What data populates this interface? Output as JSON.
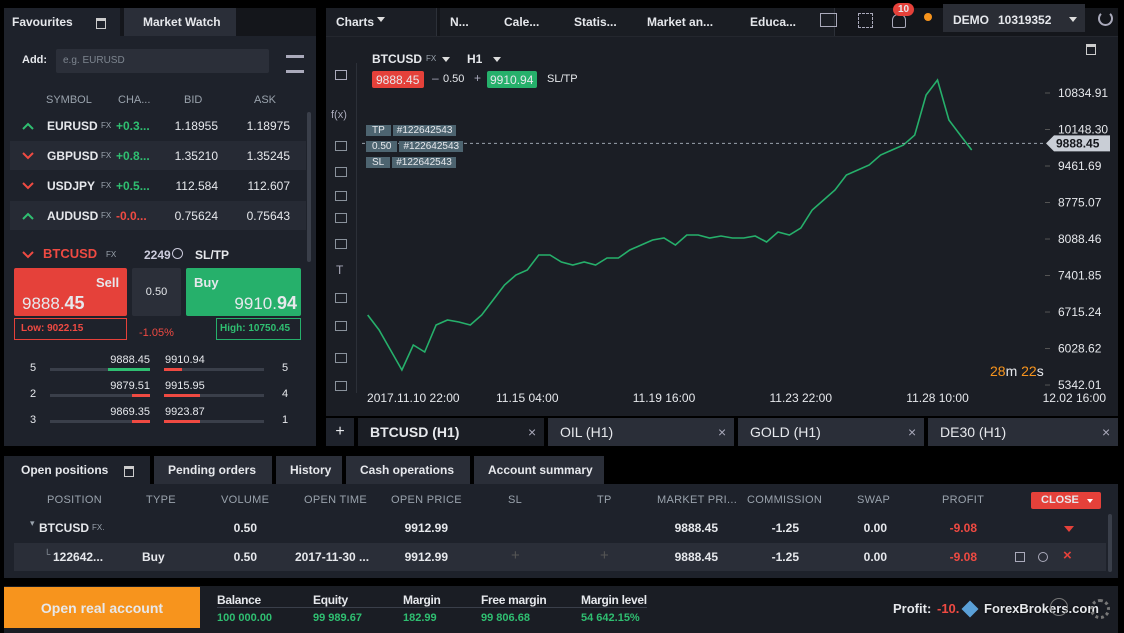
{
  "favourites": {
    "tabs": [
      "Favourites",
      "Market Watch"
    ],
    "add_label": "Add:",
    "add_placeholder": "e.g. EURUSD",
    "columns": [
      "SYMBOL",
      "CHA...",
      "BID",
      "ASK"
    ],
    "rows": [
      {
        "symbol": "EURUSD",
        "type": "FX",
        "change": "+0.3...",
        "bid": "1.18955",
        "ask": "1.18975",
        "direction": "up"
      },
      {
        "symbol": "GBPUSD",
        "type": "FX",
        "change": "+0.8...",
        "bid": "1.35210",
        "ask": "1.35245",
        "direction": "down"
      },
      {
        "symbol": "USDJPY",
        "type": "FX",
        "change": "+0.5...",
        "bid": "112.584",
        "ask": "112.607",
        "direction": "down"
      },
      {
        "symbol": "AUDUSD",
        "type": "FX",
        "change": "-0.0...",
        "bid": "0.75624",
        "ask": "0.75643",
        "direction": "up"
      }
    ]
  },
  "instrument": {
    "symbol": "BTCUSD",
    "type": "FX",
    "count": "2249",
    "sltp": "SL/TP",
    "sell_label": "Sell",
    "sell_main": "9888.",
    "sell_fraction": "45",
    "spread": "0.50",
    "buy_label": "Buy",
    "buy_main": "9910.",
    "buy_fraction": "94",
    "low": "Low: 9022.15",
    "change": "-1.05%",
    "high": "High: 10750.45",
    "depth": [
      {
        "level": "5",
        "bid": "9888.45",
        "ask": "9910.94",
        "volume": "5"
      },
      {
        "level": "2",
        "bid": "9879.51",
        "ask": "9915.95",
        "volume": "4"
      },
      {
        "level": "3",
        "bid": "9869.35",
        "ask": "9923.87",
        "volume": "1"
      }
    ]
  },
  "header": {
    "tabs": [
      "Charts",
      "N...",
      "Cale...",
      "Statis...",
      "Market an...",
      "Educa..."
    ],
    "notifications": "10",
    "account_type": "DEMO",
    "account_id": "10319352"
  },
  "chart_window": {
    "symbol": "BTCUSD",
    "symbol_type": "FX",
    "timeframe": "H1",
    "sell": "9888.45",
    "spread": "0.50",
    "buy": "9910.94",
    "sltp": "SL/TP",
    "tools": [
      "f(x)",
      "T"
    ],
    "tp_tag": "TP",
    "tp_id": "#122642543",
    "position_size": "0.50",
    "position_id": "#122642543",
    "sl_tag": "SL",
    "sl_id": "#122642543",
    "countdown_minutes": "28",
    "minutes_unit": "m",
    "countdown_seconds": "22",
    "seconds_unit": "s",
    "chart_tabs": [
      "BTCUSD (H1)",
      "OIL (H1)",
      "GOLD (H1)",
      "DE30 (H1)"
    ]
  },
  "chart_data": {
    "type": "line",
    "color": "#26b06b",
    "categories": [
      null,
      null,
      null,
      null,
      "2017.11.10 22:00",
      null,
      null,
      null,
      null,
      null,
      null,
      null,
      null,
      null,
      "11.15 04:00",
      null,
      null,
      null,
      null,
      null,
      null,
      null,
      null,
      null,
      null,
      null,
      "11.19 16:00",
      null,
      null,
      null,
      null,
      null,
      null,
      null,
      null,
      null,
      null,
      null,
      "11.23 22:00",
      null,
      null,
      null,
      null,
      null,
      null,
      null,
      null,
      null,
      null,
      null,
      "11.28 10:00",
      null,
      null,
      null,
      null,
      null,
      null,
      null,
      null,
      null,
      null,
      null,
      "12.02 16:00"
    ],
    "values": [
      6659,
      6377,
      6000,
      5624,
      6094,
      5963,
      6471,
      6565,
      6527,
      6471,
      6659,
      6941,
      7223,
      7411,
      7505,
      7787,
      7787,
      7656,
      7599,
      7656,
      7599,
      7731,
      7731,
      7881,
      7975,
      8070,
      8107,
      7975,
      8164,
      8164,
      8107,
      8145,
      8107,
      8107,
      8145,
      8032,
      8220,
      8164,
      8295,
      8634,
      8822,
      9010,
      9292,
      9386,
      9480,
      9668,
      9762,
      9856,
      10044,
      10797,
      11079,
      10327,
      10044,
      9762,
      null,
      null,
      null,
      null,
      null,
      null,
      null,
      null,
      null
    ],
    "ylim": [
      5286,
      11738
    ],
    "yticks": [
      5342.01,
      6028.62,
      6715.24,
      7401.85,
      8088.46,
      8775.07,
      9461.69,
      {
        "value": 10148.3,
        "label": "10148.30"
      },
      10834.91
    ],
    "price_line": {
      "value": 9888.45,
      "label": "9888.45"
    }
  },
  "positions": {
    "tabs": [
      "Open positions",
      "Pending orders",
      "History",
      "Cash operations",
      "Account summary"
    ],
    "columns": [
      "POSITION",
      "TYPE",
      "VOLUME",
      "OPEN TIME",
      "OPEN PRICE",
      "SL",
      "TP",
      "MARKET PRI...",
      "COMMISSION",
      "SWAP",
      "PROFIT"
    ],
    "close_button": "CLOSE",
    "rows": [
      {
        "position": "BTCUSD",
        "position_type": "FX.",
        "type": "",
        "volume": "0.50",
        "open_time": "",
        "open_price": "9912.99",
        "market_price": "9888.45",
        "commission": "-1.25",
        "swap": "0.00",
        "profit": "-9.08"
      },
      {
        "position": "122642...",
        "position_type": "",
        "type": "Buy",
        "volume": "0.50",
        "open_time": "2017-11-30 ...",
        "open_price": "9912.99",
        "market_price": "9888.45",
        "commission": "-1.25",
        "swap": "0.00",
        "profit": "-9.08"
      }
    ]
  },
  "footer": {
    "open_account": "Open real account",
    "metrics": [
      {
        "label": "Balance",
        "value": "100 000.00"
      },
      {
        "label": "Equity",
        "value": "99 989.67"
      },
      {
        "label": "Margin",
        "value": "182.99"
      },
      {
        "label": "Free margin",
        "value": "99 806.68"
      },
      {
        "label": "Margin level",
        "value": "54 642.15%"
      }
    ],
    "profit_label": "Profit:",
    "profit_value": "-10.",
    "watermark": "ForexBrokers.com"
  }
}
